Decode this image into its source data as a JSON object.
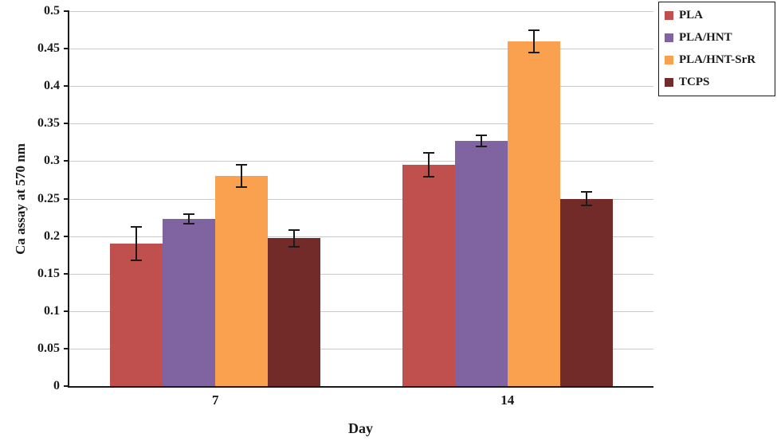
{
  "chart_data": {
    "type": "bar",
    "title": "",
    "xlabel": "Day",
    "ylabel": "Ca assay at 570 nm",
    "categories": [
      "7",
      "14"
    ],
    "ylim": [
      0,
      0.5
    ],
    "ytick_step": 0.05,
    "yticks": [
      "0",
      "0.05",
      "0.1",
      "0.15",
      "0.2",
      "0.25",
      "0.3",
      "0.35",
      "0.4",
      "0.45",
      "0.5"
    ],
    "grid": true,
    "legend_position": "top-right",
    "error_bars": true,
    "series": [
      {
        "name": "PLA",
        "color": "#C0504D",
        "values": [
          0.19,
          0.295
        ],
        "errors": [
          0.022,
          0.016
        ]
      },
      {
        "name": "PLA/HNT",
        "color": "#8064A2",
        "values": [
          0.223,
          0.327
        ],
        "errors": [
          0.006,
          0.007
        ]
      },
      {
        "name": "PLA/HNT-SrR",
        "color": "#FAA14F",
        "values": [
          0.28,
          0.46
        ],
        "errors": [
          0.015,
          0.015
        ]
      },
      {
        "name": "TCPS",
        "color": "#722B29",
        "values": [
          0.197,
          0.25
        ],
        "errors": [
          0.011,
          0.009
        ]
      }
    ]
  }
}
